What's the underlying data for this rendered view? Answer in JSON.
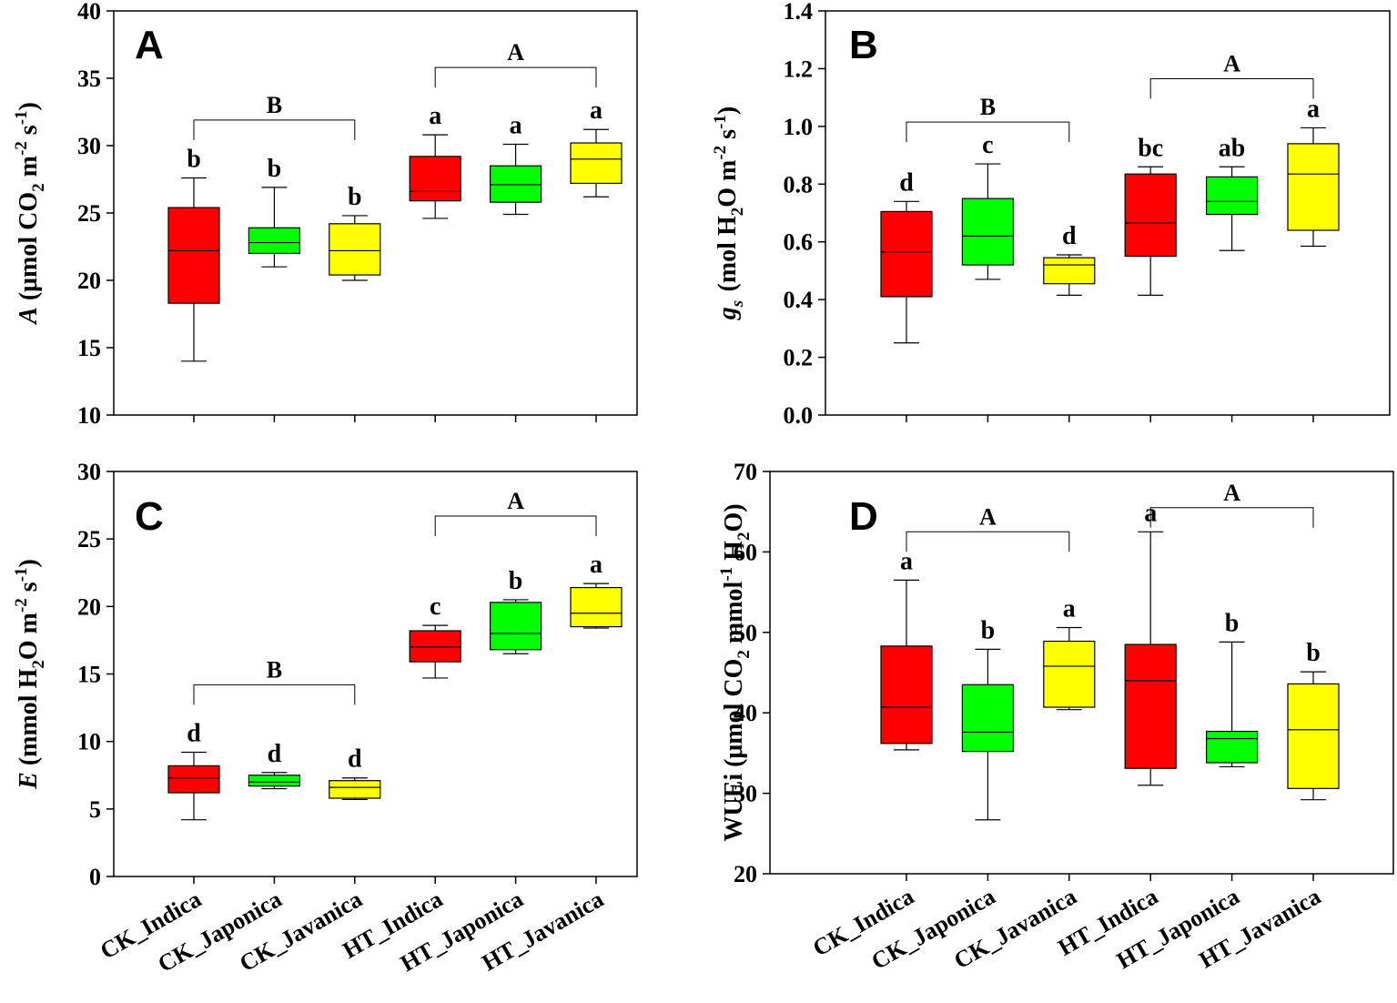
{
  "categories": [
    "CK_Indica",
    "CK_Japonica",
    "CK_Javanica",
    "HT_Indica",
    "HT_Japonica",
    "HT_Javanica"
  ],
  "colors": [
    "#ff0000",
    "#00ff00",
    "#ffff00",
    "#ff0000",
    "#00ff00",
    "#ffff00"
  ],
  "chart_data": [
    {
      "type": "box",
      "panel_label": "A",
      "ylabel": {
        "var": "A",
        "prefix": " (μmol CO",
        "sub1": "2",
        "mid1": " m",
        "sup1": "-2",
        "mid2": " s",
        "sup2": "-1",
        "suffix": ")"
      },
      "ylim": [
        10,
        40
      ],
      "yticks": [
        10,
        15,
        20,
        25,
        30,
        35,
        40
      ],
      "tick_decimals": 0,
      "boxes": [
        {
          "min": 14.0,
          "q1": 18.3,
          "median": 22.2,
          "q3": 25.4,
          "max": 27.6
        },
        {
          "min": 21.0,
          "q1": 22.0,
          "median": 22.8,
          "q3": 23.9,
          "max": 26.9
        },
        {
          "min": 20.0,
          "q1": 20.4,
          "median": 22.2,
          "q3": 24.2,
          "max": 24.8
        },
        {
          "min": 24.6,
          "q1": 25.9,
          "median": 26.6,
          "q3": 29.2,
          "max": 30.8
        },
        {
          "min": 24.9,
          "q1": 25.8,
          "median": 27.1,
          "q3": 28.5,
          "max": 30.1
        },
        {
          "min": 26.2,
          "q1": 27.2,
          "median": 29.0,
          "q3": 30.2,
          "max": 31.2
        }
      ],
      "letters": [
        "b",
        "b",
        "b",
        "a",
        "a",
        "a"
      ],
      "groups": [
        {
          "label": "B",
          "from": 0,
          "to": 2,
          "y": 31.9
        },
        {
          "label": "A",
          "from": 3,
          "to": 5,
          "y": 35.8
        }
      ]
    },
    {
      "type": "box",
      "panel_label": "B",
      "ylabel": {
        "var": "g",
        "var_sub": "s",
        "prefix": " (mol H",
        "sub1": "2",
        "mid1": "O m",
        "sup1": "-2",
        "mid2": " s",
        "sup2": "-1",
        "suffix": ")"
      },
      "ylim": [
        0.0,
        1.4
      ],
      "yticks": [
        0.0,
        0.2,
        0.4,
        0.6,
        0.8,
        1.0,
        1.2,
        1.4
      ],
      "tick_decimals": 1,
      "boxes": [
        {
          "min": 0.25,
          "q1": 0.41,
          "median": 0.565,
          "q3": 0.705,
          "max": 0.74
        },
        {
          "min": 0.47,
          "q1": 0.52,
          "median": 0.62,
          "q3": 0.75,
          "max": 0.87
        },
        {
          "min": 0.415,
          "q1": 0.455,
          "median": 0.52,
          "q3": 0.545,
          "max": 0.555
        },
        {
          "min": 0.415,
          "q1": 0.55,
          "median": 0.665,
          "q3": 0.835,
          "max": 0.86
        },
        {
          "min": 0.57,
          "q1": 0.695,
          "median": 0.74,
          "q3": 0.825,
          "max": 0.86
        },
        {
          "min": 0.585,
          "q1": 0.64,
          "median": 0.835,
          "q3": 0.94,
          "max": 0.995
        }
      ],
      "letters": [
        "d",
        "c",
        "d",
        "bc",
        "ab",
        "a"
      ],
      "groups": [
        {
          "label": "B",
          "from": 0,
          "to": 2,
          "y": 1.015
        },
        {
          "label": "A",
          "from": 3,
          "to": 5,
          "y": 1.165
        }
      ]
    },
    {
      "type": "box",
      "panel_label": "C",
      "ylabel": {
        "var": "E",
        "prefix": " (mmol H",
        "sub1": "2",
        "mid1": "O m",
        "sup1": "-2",
        "mid2": " s",
        "sup2": "-1",
        "suffix": ")"
      },
      "ylim": [
        0,
        30
      ],
      "yticks": [
        0,
        5,
        10,
        15,
        20,
        25,
        30
      ],
      "tick_decimals": 0,
      "boxes": [
        {
          "min": 4.2,
          "q1": 6.2,
          "median": 7.3,
          "q3": 8.2,
          "max": 9.2
        },
        {
          "min": 6.5,
          "q1": 6.7,
          "median": 7.0,
          "q3": 7.5,
          "max": 7.7
        },
        {
          "min": 5.7,
          "q1": 5.8,
          "median": 6.6,
          "q3": 7.1,
          "max": 7.3
        },
        {
          "min": 14.7,
          "q1": 15.9,
          "median": 17.0,
          "q3": 18.2,
          "max": 18.6
        },
        {
          "min": 16.5,
          "q1": 16.8,
          "median": 18.0,
          "q3": 20.3,
          "max": 20.5
        },
        {
          "min": 18.4,
          "q1": 18.5,
          "median": 19.5,
          "q3": 21.4,
          "max": 21.7
        }
      ],
      "letters": [
        "d",
        "d",
        "d",
        "c",
        "b",
        "a"
      ],
      "groups": [
        {
          "label": "B",
          "from": 0,
          "to": 2,
          "y": 14.2
        },
        {
          "label": "A",
          "from": 3,
          "to": 5,
          "y": 26.7
        }
      ]
    },
    {
      "type": "box",
      "panel_label": "D",
      "ylabel": {
        "var": "",
        "prefix": "WUEi (μmol CO",
        "sub1": "2",
        "mid1": " mmol",
        "sup1": "-1",
        "mid2": " H",
        "sub2": "2",
        "suffix": "O)"
      },
      "ylim": [
        20,
        70
      ],
      "yticks": [
        20,
        30,
        40,
        50,
        60,
        70
      ],
      "tick_decimals": 0,
      "boxes": [
        {
          "min": 35.4,
          "q1": 36.2,
          "median": 40.7,
          "q3": 48.3,
          "max": 56.5
        },
        {
          "min": 26.7,
          "q1": 35.2,
          "median": 37.6,
          "q3": 43.5,
          "max": 47.9
        },
        {
          "min": 40.4,
          "q1": 40.7,
          "median": 45.8,
          "q3": 48.9,
          "max": 50.6
        },
        {
          "min": 31.0,
          "q1": 33.1,
          "median": 44.0,
          "q3": 48.5,
          "max": 62.5
        },
        {
          "min": 33.3,
          "q1": 33.8,
          "median": 36.8,
          "q3": 37.7,
          "max": 48.8
        },
        {
          "min": 29.2,
          "q1": 30.6,
          "median": 37.9,
          "q3": 43.6,
          "max": 45.1
        }
      ],
      "letters": [
        "a",
        "b",
        "a",
        "a",
        "b",
        "b"
      ],
      "groups": [
        {
          "label": "A",
          "from": 0,
          "to": 2,
          "y": 62.5
        },
        {
          "label": "A",
          "from": 3,
          "to": 5,
          "y": 65.5
        }
      ]
    }
  ]
}
